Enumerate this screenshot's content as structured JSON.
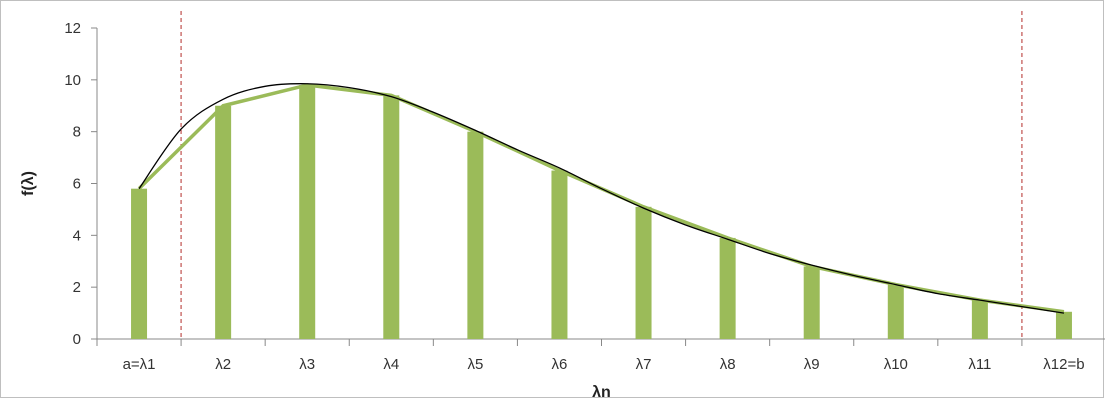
{
  "chart_data": {
    "type": "bar",
    "title": "",
    "xlabel": "λn",
    "ylabel": "f(λ)",
    "categories": [
      "a=λ1",
      "λ2",
      "λ3",
      "λ4",
      "λ5",
      "λ6",
      "λ7",
      "λ8",
      "λ9",
      "λ10",
      "λ11",
      "λ12=b"
    ],
    "ylim": [
      0,
      12
    ],
    "yticks": [
      0,
      2,
      4,
      6,
      8,
      10,
      12
    ],
    "grid": false,
    "legend": "none",
    "series": [
      {
        "type": "bar",
        "values": [
          5.8,
          9.0,
          9.8,
          9.4,
          8.0,
          6.5,
          5.1,
          3.9,
          2.8,
          2.1,
          1.5,
          1.05
        ],
        "color": "#9bbb59"
      },
      {
        "type": "line",
        "values": [
          5.8,
          9.0,
          9.8,
          9.4,
          8.0,
          6.5,
          5.1,
          3.9,
          2.8,
          2.1,
          1.5,
          1.05
        ],
        "color": "#9bbb59"
      },
      {
        "type": "curve",
        "x": [
          1,
          1.5,
          2,
          2.5,
          3,
          3.5,
          4,
          4.5,
          5,
          5.5,
          6,
          6.5,
          7,
          7.5,
          8,
          8.5,
          9,
          9.5,
          10,
          10.5,
          11,
          11.5,
          12
        ],
        "values": [
          5.8,
          8.1,
          9.25,
          9.75,
          9.85,
          9.7,
          9.35,
          8.75,
          8.05,
          7.3,
          6.6,
          5.8,
          5.05,
          4.4,
          3.85,
          3.3,
          2.85,
          2.45,
          2.1,
          1.75,
          1.5,
          1.25,
          1.0
        ],
        "color": "#000000"
      }
    ],
    "vertical_markers": [
      1.5,
      11.5
    ],
    "marker_color": "#c0504d"
  }
}
